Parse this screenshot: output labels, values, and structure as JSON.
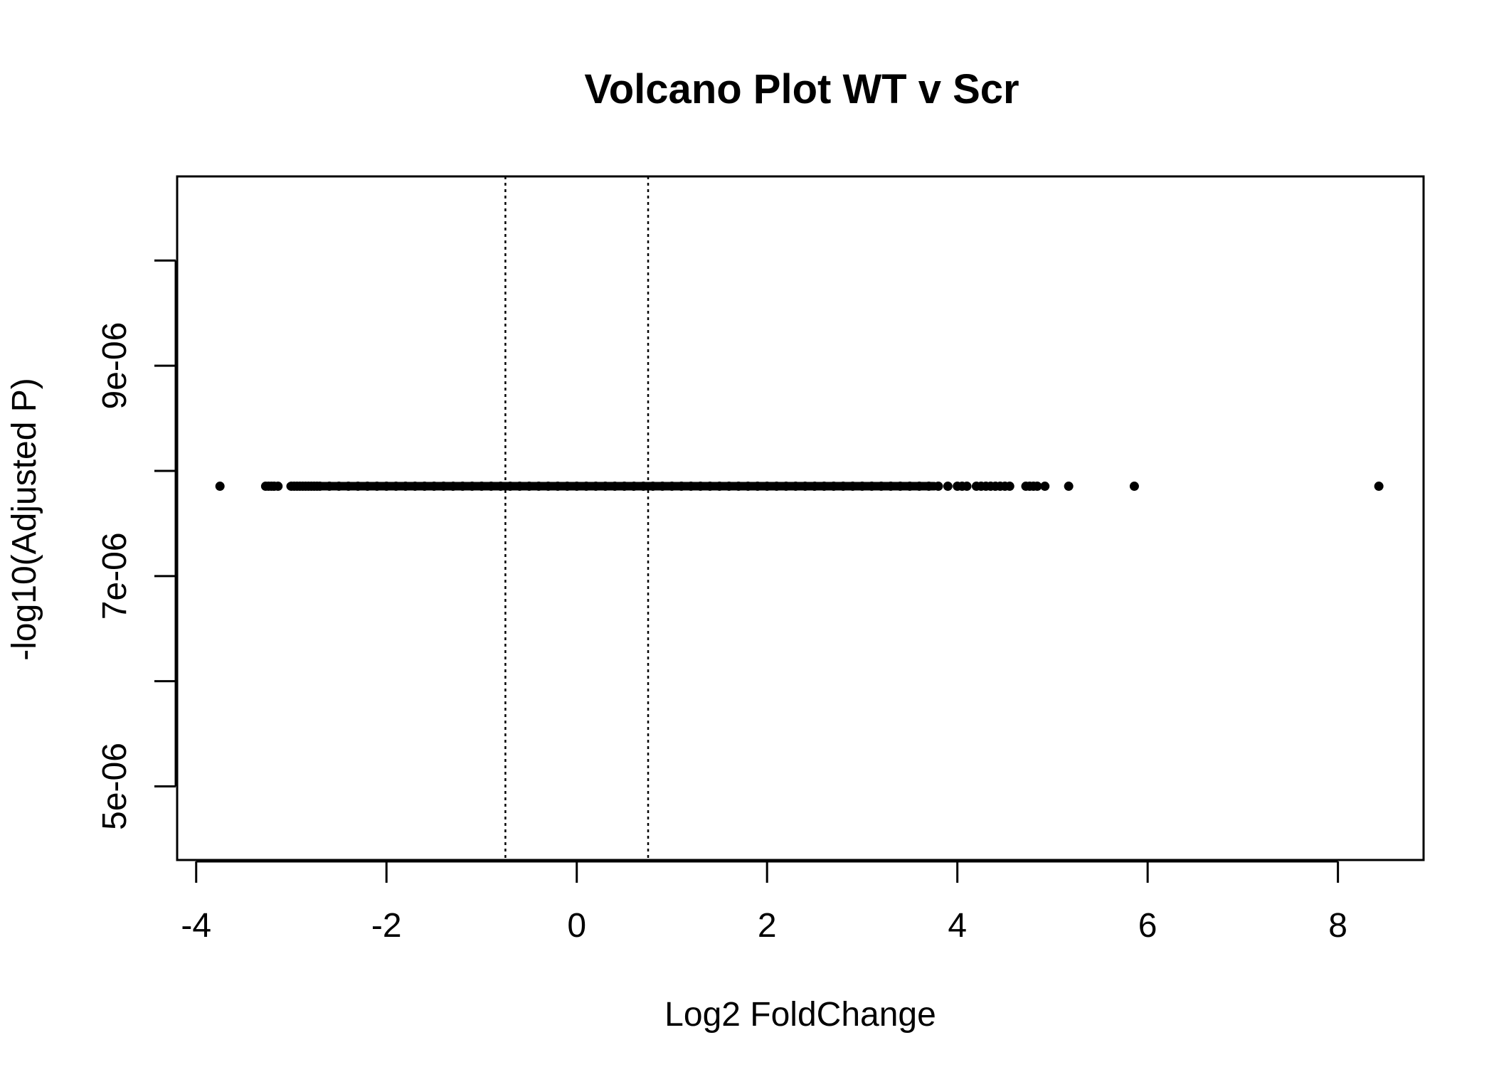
{
  "chart_data": {
    "type": "scatter",
    "title": "Volcano Plot WT v Scr",
    "xlabel": "Log2 FoldChange",
    "ylabel": "-log10(Adjusted P)",
    "xlim": [
      -4.2,
      8.9
    ],
    "ylim": [
      4.3e-06,
      1.08e-05
    ],
    "x_ticks": [
      -4,
      -2,
      0,
      2,
      4,
      6,
      8
    ],
    "x_tick_labels": [
      "-4",
      "-2",
      "0",
      "2",
      "4",
      "6",
      "8"
    ],
    "y_ticks": [
      5e-06,
      6e-06,
      7e-06,
      8e-06,
      9e-06,
      1e-05
    ],
    "y_tick_labels": [
      "5e-06",
      "",
      "7e-06",
      "",
      "9e-06",
      ""
    ],
    "thresholds": {
      "x": [
        -0.75,
        0.75
      ],
      "line_style": "dotted"
    },
    "grid": false,
    "legend": "none",
    "point_color": "#000000",
    "y_value": 7.854e-06,
    "x_values": [
      -3.75,
      -3.27,
      -3.24,
      -3.21,
      -3.18,
      -3.14,
      -3.0,
      -2.97,
      -2.94,
      -2.91,
      -2.88,
      -2.85,
      -2.82,
      -2.79,
      -2.76,
      -2.73,
      -2.7,
      -2.6,
      -2.5,
      -2.4,
      -2.3,
      -2.2,
      -2.1,
      -2.0,
      -1.9,
      -1.8,
      -1.7,
      -1.6,
      -1.5,
      -1.4,
      -1.3,
      -1.2,
      -1.1,
      -1.0,
      -0.9,
      -0.8,
      -0.7,
      -0.6,
      -0.5,
      -0.4,
      -0.3,
      -0.2,
      -0.1,
      0.0,
      0.1,
      0.2,
      0.3,
      0.4,
      0.5,
      0.6,
      0.7,
      0.8,
      0.9,
      1.0,
      1.1,
      1.2,
      1.3,
      1.4,
      1.5,
      1.6,
      1.7,
      1.8,
      1.9,
      2.0,
      2.1,
      2.2,
      2.3,
      2.4,
      2.5,
      2.6,
      2.7,
      2.8,
      2.9,
      3.0,
      3.1,
      3.2,
      3.3,
      3.4,
      3.5,
      3.6,
      3.7,
      3.8,
      3.9,
      4.0,
      4.05,
      4.1,
      4.2,
      4.25,
      4.3,
      4.35,
      4.4,
      4.45,
      4.5,
      4.55,
      4.72,
      4.76,
      4.8,
      4.84,
      4.92,
      5.17,
      5.86,
      8.43
    ]
  }
}
